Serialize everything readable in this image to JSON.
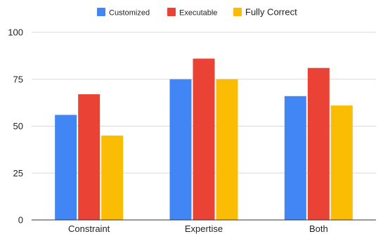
{
  "chart_data": {
    "type": "bar",
    "categories": [
      "Constraint",
      "Expertise",
      "Both"
    ],
    "series": [
      {
        "name": "Customized",
        "color": "#4285f4",
        "values": [
          56,
          75,
          66
        ]
      },
      {
        "name": "Executable",
        "color": "#ea4335",
        "values": [
          67,
          86,
          81
        ]
      },
      {
        "name": "Fully Correct",
        "color": "#fbbc04",
        "values": [
          45,
          75,
          61
        ]
      }
    ],
    "ylim": [
      0,
      100
    ],
    "yticks": [
      0,
      25,
      50,
      75,
      100
    ],
    "grid": true,
    "legend_position": "top",
    "title": "",
    "xlabel": "",
    "ylabel": ""
  }
}
